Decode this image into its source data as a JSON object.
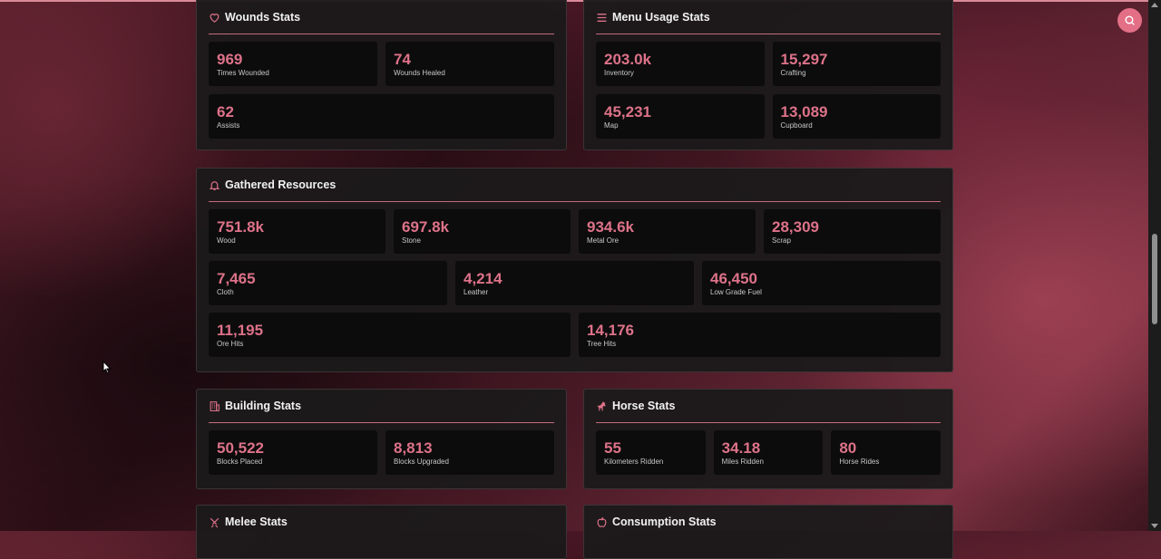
{
  "colors": {
    "accent": "#dd7289",
    "card_bg": "#0c0c0c",
    "panel_bg": "#1c1a1b"
  },
  "wounds": {
    "title": "Wounds Stats",
    "icon": "heart-icon",
    "stats": [
      {
        "value": "969",
        "label": "Times Wounded"
      },
      {
        "value": "74",
        "label": "Wounds Healed"
      },
      {
        "value": "62",
        "label": "Assists"
      }
    ]
  },
  "menu": {
    "title": "Menu Usage Stats",
    "icon": "menu-lines-icon",
    "stats": [
      {
        "value": "203.0k",
        "label": "Inventory"
      },
      {
        "value": "15,297",
        "label": "Crafting"
      },
      {
        "value": "45,231",
        "label": "Map"
      },
      {
        "value": "13,089",
        "label": "Cupboard"
      }
    ]
  },
  "gathered": {
    "title": "Gathered Resources",
    "icon": "bell-icon",
    "stats": [
      {
        "value": "751.8k",
        "label": "Wood"
      },
      {
        "value": "697.8k",
        "label": "Stone"
      },
      {
        "value": "934.6k",
        "label": "Metal Ore"
      },
      {
        "value": "28,309",
        "label": "Scrap"
      },
      {
        "value": "7,465",
        "label": "Cloth"
      },
      {
        "value": "4,214",
        "label": "Leather"
      },
      {
        "value": "46,450",
        "label": "Low Grade Fuel"
      },
      {
        "value": "11,195",
        "label": "Ore Hits"
      },
      {
        "value": "14,176",
        "label": "Tree Hits"
      }
    ]
  },
  "building": {
    "title": "Building Stats",
    "icon": "building-icon",
    "stats": [
      {
        "value": "50,522",
        "label": "Blocks Placed"
      },
      {
        "value": "8,813",
        "label": "Blocks Upgraded"
      }
    ]
  },
  "horse": {
    "title": "Horse Stats",
    "icon": "horse-icon",
    "stats": [
      {
        "value": "55",
        "label": "Kilometers Ridden"
      },
      {
        "value": "34.18",
        "label": "Miles Ridden"
      },
      {
        "value": "80",
        "label": "Horse Rides"
      }
    ]
  },
  "melee": {
    "title": "Melee Stats",
    "icon": "swords-icon"
  },
  "consumption": {
    "title": "Consumption Stats",
    "icon": "apple-icon"
  },
  "search": {
    "icon": "search-icon"
  }
}
